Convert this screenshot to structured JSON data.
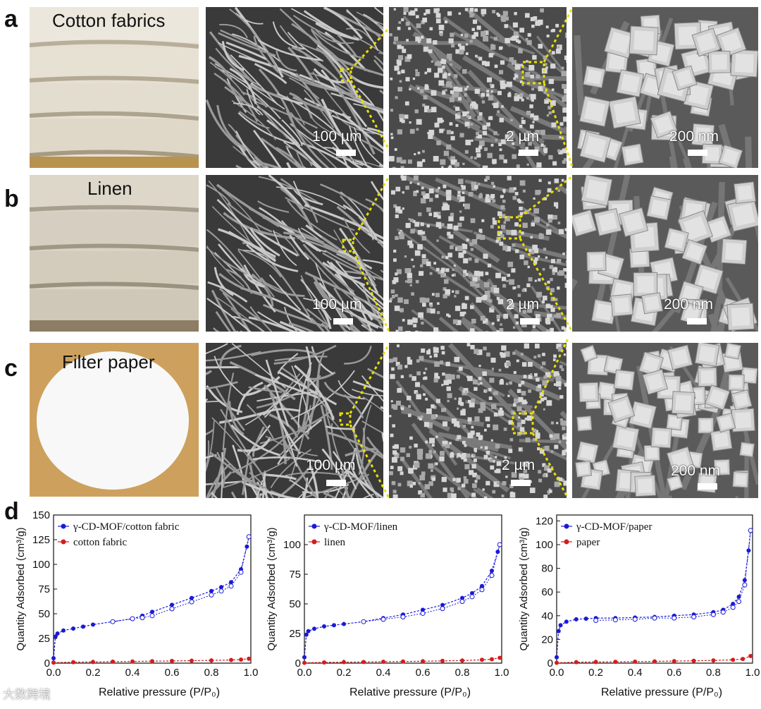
{
  "figure": {
    "rows": [
      {
        "letter": "a",
        "photo_label": "Cotton fabrics",
        "scales": [
          "100 µm",
          "2 µm",
          "200 nm"
        ]
      },
      {
        "letter": "b",
        "photo_label": "Linen",
        "scales": [
          "100 µm",
          "2 µm",
          "200 nm"
        ]
      },
      {
        "letter": "c",
        "photo_label": "Filter paper",
        "scales": [
          "100 µm",
          "2 µm",
          "200 nm"
        ]
      }
    ],
    "panel_d_letter": "d",
    "highlight_color": "#e8e000",
    "watermark": "大数跨境"
  },
  "chart_data": [
    {
      "type": "line",
      "xlabel": "Relative pressure (P/P₀)",
      "ylabel": "Quantity Adsorbed (cm³/g)",
      "xlim": [
        0.0,
        1.0
      ],
      "ylim": [
        0,
        150
      ],
      "xticks": [
        "0.0",
        "0.2",
        "0.4",
        "0.6",
        "0.8",
        "1.0"
      ],
      "yticks": [
        "0",
        "25",
        "50",
        "75",
        "100",
        "125",
        "150"
      ],
      "legend": "top-left",
      "series": [
        {
          "name": "γ-CD-MOF/cotton fabric",
          "color": "#1a1ad6",
          "x": [
            0.0,
            0.01,
            0.02,
            0.05,
            0.1,
            0.15,
            0.2,
            0.3,
            0.4,
            0.45,
            0.5,
            0.6,
            0.7,
            0.8,
            0.85,
            0.9,
            0.95,
            0.98,
            0.99
          ],
          "y": [
            5,
            27,
            30,
            33,
            35,
            37,
            39,
            42,
            45,
            48,
            52,
            59,
            66,
            73,
            77,
            82,
            95,
            118,
            128
          ],
          "des_x": [
            0.99,
            0.95,
            0.9,
            0.85,
            0.8,
            0.7,
            0.6,
            0.5,
            0.45,
            0.4,
            0.3
          ],
          "des_y": [
            128,
            92,
            78,
            73,
            69,
            62,
            55,
            48,
            46,
            45,
            42
          ]
        },
        {
          "name": "cotton fabric",
          "color": "#d81b1b",
          "x": [
            0.0,
            0.1,
            0.2,
            0.3,
            0.4,
            0.5,
            0.6,
            0.7,
            0.8,
            0.9,
            0.95,
            0.99
          ],
          "y": [
            0.5,
            1,
            1.2,
            1.5,
            1.7,
            2,
            2.2,
            2.5,
            2.8,
            3.2,
            3.6,
            4.5
          ]
        }
      ]
    },
    {
      "type": "line",
      "xlabel": "Relative pressure (P/P₀)",
      "ylabel": "Quantity Adsorbed (cm³/g)",
      "xlim": [
        0.0,
        1.0
      ],
      "ylim": [
        0,
        125
      ],
      "xticks": [
        "0.0",
        "0.2",
        "0.4",
        "0.6",
        "0.8",
        "1.0"
      ],
      "yticks": [
        "0",
        "25",
        "50",
        "75",
        "100"
      ],
      "legend": "top-left",
      "series": [
        {
          "name": "γ-CD-MOF/linen",
          "color": "#1a1ad6",
          "x": [
            0.0,
            0.01,
            0.02,
            0.05,
            0.1,
            0.15,
            0.2,
            0.3,
            0.4,
            0.5,
            0.6,
            0.7,
            0.8,
            0.85,
            0.9,
            0.95,
            0.98,
            0.99
          ],
          "y": [
            5,
            24,
            27,
            29,
            31,
            32,
            33,
            35,
            38,
            41,
            45,
            49,
            55,
            59,
            65,
            78,
            94,
            100
          ],
          "des_x": [
            0.99,
            0.95,
            0.9,
            0.85,
            0.8,
            0.7,
            0.6,
            0.5,
            0.4,
            0.3
          ],
          "des_y": [
            100,
            74,
            62,
            56,
            52,
            46,
            42,
            39,
            37,
            35
          ]
        },
        {
          "name": "linen",
          "color": "#d81b1b",
          "x": [
            0.0,
            0.1,
            0.2,
            0.3,
            0.4,
            0.5,
            0.6,
            0.7,
            0.8,
            0.9,
            0.95,
            0.99
          ],
          "y": [
            0.3,
            0.6,
            0.8,
            1,
            1.2,
            1.4,
            1.6,
            1.9,
            2.2,
            2.8,
            3.3,
            4.5
          ]
        }
      ]
    },
    {
      "type": "line",
      "xlabel": "Relative pressure (P/P₀)",
      "ylabel": "Quantity Adsorbed (cm³/g)",
      "xlim": [
        0.0,
        1.0
      ],
      "ylim": [
        0,
        125
      ],
      "xticks": [
        "0.0",
        "0.2",
        "0.4",
        "0.6",
        "0.8",
        "1.0"
      ],
      "yticks": [
        "0",
        "20",
        "40",
        "60",
        "80",
        "100",
        "120"
      ],
      "legend": "top-left",
      "series": [
        {
          "name": "γ-CD-MOF/paper",
          "color": "#1a1ad6",
          "x": [
            0.0,
            0.01,
            0.02,
            0.05,
            0.1,
            0.15,
            0.2,
            0.3,
            0.4,
            0.5,
            0.6,
            0.7,
            0.8,
            0.85,
            0.9,
            0.93,
            0.96,
            0.98,
            0.99
          ],
          "y": [
            5,
            27,
            32,
            35,
            37,
            37.5,
            38,
            38,
            38.5,
            39,
            40,
            41,
            43,
            45,
            50,
            56,
            70,
            95,
            112
          ],
          "des_x": [
            0.99,
            0.96,
            0.93,
            0.9,
            0.85,
            0.8,
            0.7,
            0.6,
            0.5,
            0.4,
            0.3,
            0.2
          ],
          "des_y": [
            112,
            66,
            52,
            47,
            43,
            41,
            39,
            38,
            38,
            37,
            36.5,
            36
          ]
        },
        {
          "name": "paper",
          "color": "#d81b1b",
          "x": [
            0.0,
            0.1,
            0.2,
            0.3,
            0.4,
            0.5,
            0.6,
            0.7,
            0.8,
            0.9,
            0.95,
            0.99
          ],
          "y": [
            0.3,
            0.8,
            1,
            1.1,
            1.3,
            1.5,
            1.7,
            2,
            2.3,
            2.8,
            3.5,
            6
          ]
        }
      ]
    }
  ]
}
